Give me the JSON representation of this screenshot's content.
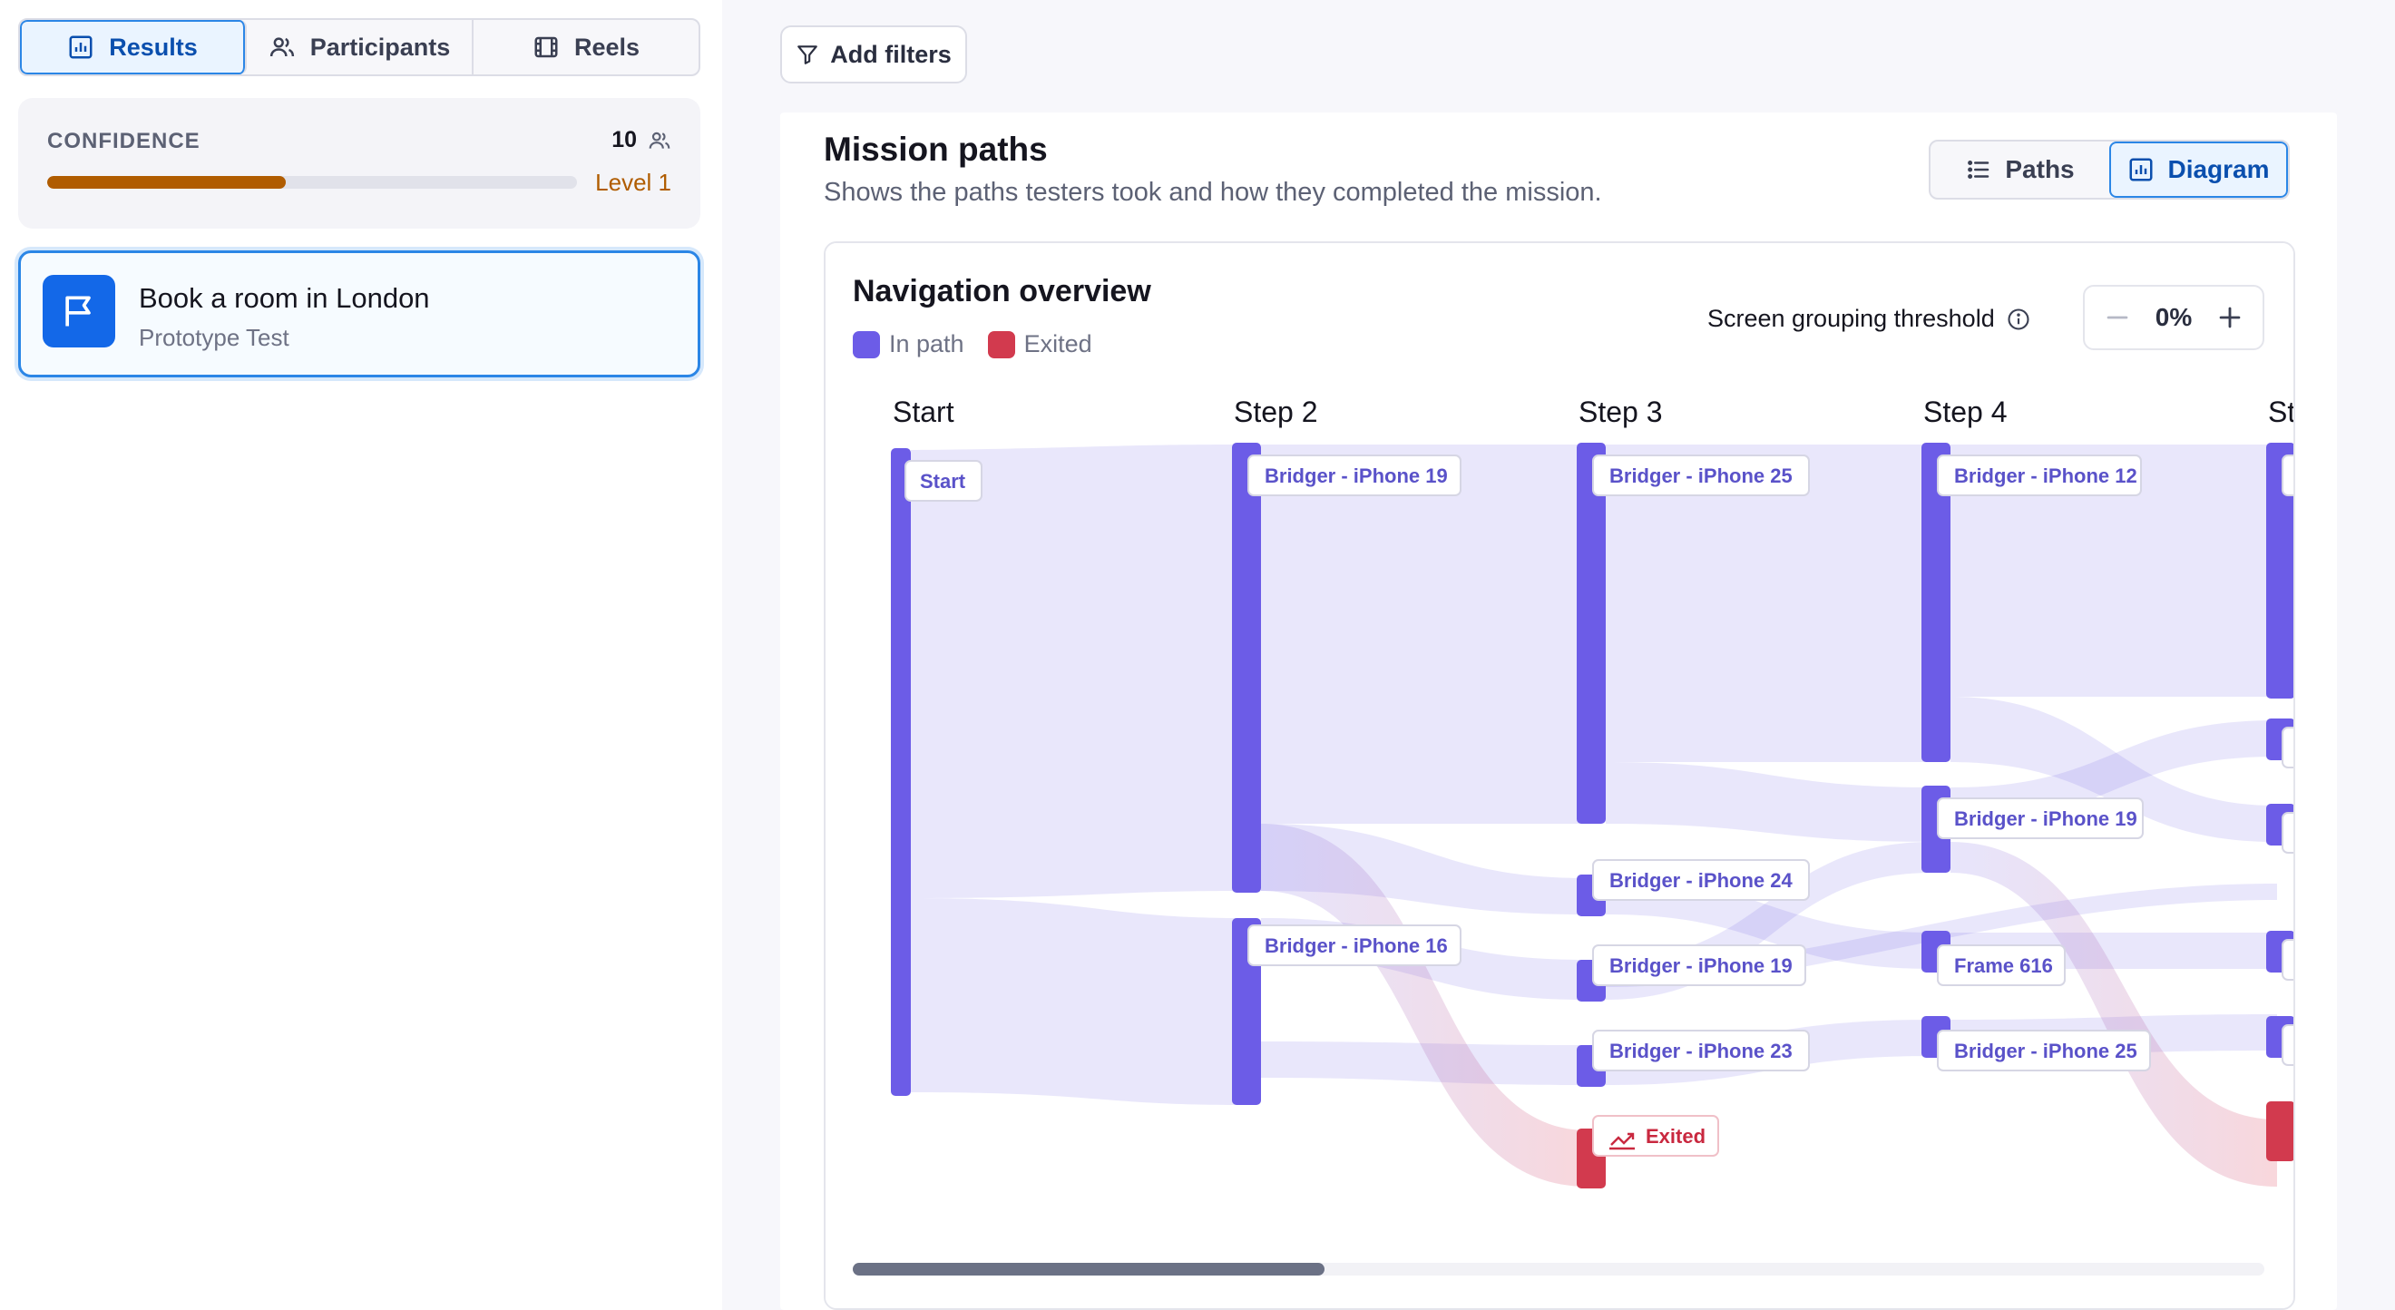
{
  "colors": {
    "accent": "#2b86e6",
    "in_path": "#6c5ce7",
    "exited": "#d23a4e",
    "confidence": "#b05c00"
  },
  "tabs": [
    {
      "label": "Results",
      "icon": "bar-chart-icon",
      "active": true
    },
    {
      "label": "Participants",
      "icon": "users-icon",
      "active": false
    },
    {
      "label": "Reels",
      "icon": "film-icon",
      "active": false
    }
  ],
  "confidence": {
    "label": "CONFIDENCE",
    "count": "10",
    "level": "Level 1",
    "progress": 0.45
  },
  "mission": {
    "title": "Book a room in London",
    "subtitle": "Prototype Test",
    "icon": "flag-icon"
  },
  "filters": {
    "add_label": "Add filters"
  },
  "panel": {
    "title": "Mission paths",
    "subtitle": "Shows the paths testers took and how they completed the mission.",
    "views": [
      {
        "label": "Paths",
        "icon": "list-icon",
        "active": false
      },
      {
        "label": "Diagram",
        "icon": "bar-chart-icon",
        "active": true
      }
    ]
  },
  "diagram": {
    "title": "Navigation overview",
    "legend": [
      {
        "label": "In path",
        "color": "#6c5ce7"
      },
      {
        "label": "Exited",
        "color": "#d23a4e"
      }
    ],
    "threshold_label": "Screen grouping threshold",
    "threshold_value": "0%",
    "steps": [
      "Start",
      "Step 2",
      "Step 3",
      "Step 4",
      "St"
    ],
    "nodes": {
      "start": "Start",
      "s2a": "Bridger - iPhone 19",
      "s2b": "Bridger - iPhone 16",
      "s3a": "Bridger - iPhone 25",
      "s3b": "Bridger - iPhone 24",
      "s3c": "Bridger - iPhone 19",
      "s3d": "Bridger - iPhone 23",
      "s3e": "Exited",
      "s4a": "Bridger - iPhone 12",
      "s4b": "Bridger - iPhone 19",
      "s4c": "Frame 616",
      "s4d": "Bridger - iPhone 25"
    }
  }
}
